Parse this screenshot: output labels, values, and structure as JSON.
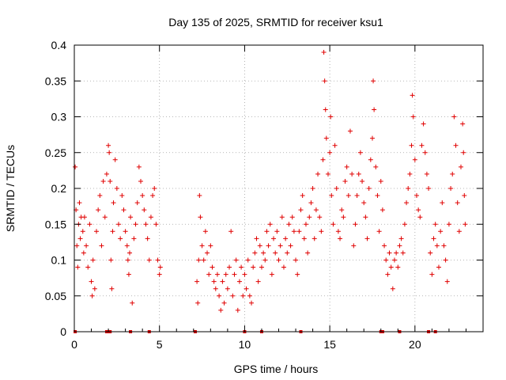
{
  "chart_data": {
    "type": "scatter",
    "title": "Day 135 of 2025, SRMTID for receiver ksu1",
    "xlabel": "GPS time / hours",
    "ylabel": "SRMTID / TECUs",
    "xlim": [
      0,
      24
    ],
    "ylim": [
      0,
      0.4
    ],
    "grid": true,
    "x_ticks": [
      0,
      5,
      10,
      15,
      20
    ],
    "x_tick_labels": [
      "0",
      "5",
      "10",
      "15",
      "20"
    ],
    "y_ticks": [
      0,
      0.05,
      0.1,
      0.15,
      0.2,
      0.25,
      0.3,
      0.35,
      0.4
    ],
    "y_tick_labels": [
      "0",
      "0.05",
      "0.1",
      "0.15",
      "0.2",
      "0.25",
      "0.3",
      "0.35",
      "0.4"
    ],
    "marker": "+",
    "color": "#e00000",
    "series": [
      {
        "name": "SRMTID",
        "points": [
          [
            0.05,
            0.23
          ],
          [
            0.1,
            0.17
          ],
          [
            0.15,
            0.12
          ],
          [
            0.2,
            0.09
          ],
          [
            0.25,
            0.15
          ],
          [
            0.3,
            0.18
          ],
          [
            0.35,
            0.13
          ],
          [
            0.4,
            0.16
          ],
          [
            0.5,
            0.14
          ],
          [
            0.55,
            0.11
          ],
          [
            0.6,
            0.16
          ],
          [
            0.7,
            0.12
          ],
          [
            0.8,
            0.09
          ],
          [
            0.9,
            0.15
          ],
          [
            1.0,
            0.07
          ],
          [
            1.05,
            0.05
          ],
          [
            1.1,
            0.1
          ],
          [
            1.2,
            0.06
          ],
          [
            1.3,
            0.14
          ],
          [
            1.4,
            0.17
          ],
          [
            1.5,
            0.19
          ],
          [
            1.6,
            0.12
          ],
          [
            1.7,
            0.21
          ],
          [
            1.8,
            0.16
          ],
          [
            1.9,
            0.22
          ],
          [
            2.0,
            0.26
          ],
          [
            2.05,
            0.25
          ],
          [
            2.1,
            0.21
          ],
          [
            2.15,
            0.1
          ],
          [
            2.2,
            0.06
          ],
          [
            2.25,
            0.14
          ],
          [
            2.3,
            0.18
          ],
          [
            2.4,
            0.24
          ],
          [
            2.5,
            0.2
          ],
          [
            2.6,
            0.15
          ],
          [
            2.7,
            0.13
          ],
          [
            2.8,
            0.19
          ],
          [
            2.9,
            0.17
          ],
          [
            3.0,
            0.14
          ],
          [
            3.1,
            0.12
          ],
          [
            3.15,
            0.1
          ],
          [
            3.2,
            0.08
          ],
          [
            3.25,
            0.11
          ],
          [
            3.3,
            0.16
          ],
          [
            3.4,
            0.04
          ],
          [
            3.5,
            0.13
          ],
          [
            3.6,
            0.15
          ],
          [
            3.7,
            0.18
          ],
          [
            3.8,
            0.23
          ],
          [
            3.9,
            0.21
          ],
          [
            4.0,
            0.19
          ],
          [
            4.1,
            0.17
          ],
          [
            4.2,
            0.15
          ],
          [
            4.3,
            0.13
          ],
          [
            4.4,
            0.1
          ],
          [
            4.5,
            0.16
          ],
          [
            4.6,
            0.19
          ],
          [
            4.7,
            0.2
          ],
          [
            4.8,
            0.15
          ],
          [
            4.9,
            0.1
          ],
          [
            5.0,
            0.08
          ],
          [
            5.05,
            0.09
          ],
          [
            7.2,
            0.07
          ],
          [
            7.25,
            0.04
          ],
          [
            7.3,
            0.1
          ],
          [
            7.35,
            0.19
          ],
          [
            7.4,
            0.16
          ],
          [
            7.5,
            0.12
          ],
          [
            7.6,
            0.1
          ],
          [
            7.7,
            0.14
          ],
          [
            7.8,
            0.11
          ],
          [
            7.9,
            0.08
          ],
          [
            8.0,
            0.12
          ],
          [
            8.1,
            0.09
          ],
          [
            8.2,
            0.07
          ],
          [
            8.3,
            0.06
          ],
          [
            8.4,
            0.08
          ],
          [
            8.5,
            0.05
          ],
          [
            8.6,
            0.03
          ],
          [
            8.7,
            0.07
          ],
          [
            8.8,
            0.04
          ],
          [
            8.9,
            0.08
          ],
          [
            9.0,
            0.06
          ],
          [
            9.1,
            0.09
          ],
          [
            9.2,
            0.14
          ],
          [
            9.3,
            0.05
          ],
          [
            9.4,
            0.08
          ],
          [
            9.5,
            0.1
          ],
          [
            9.6,
            0.03
          ],
          [
            9.7,
            0.07
          ],
          [
            9.8,
            0.09
          ],
          [
            9.9,
            0.05
          ],
          [
            10.0,
            0.08
          ],
          [
            10.1,
            0.06
          ],
          [
            10.2,
            0.1
          ],
          [
            10.3,
            0.05
          ],
          [
            10.4,
            0.04
          ],
          [
            10.5,
            0.09
          ],
          [
            10.6,
            0.11
          ],
          [
            10.7,
            0.13
          ],
          [
            10.8,
            0.07
          ],
          [
            10.9,
            0.12
          ],
          [
            11.0,
            0.09
          ],
          [
            11.1,
            0.11
          ],
          [
            11.2,
            0.1
          ],
          [
            11.3,
            0.14
          ],
          [
            11.4,
            0.12
          ],
          [
            11.5,
            0.15
          ],
          [
            11.6,
            0.08
          ],
          [
            11.7,
            0.13
          ],
          [
            11.8,
            0.11
          ],
          [
            11.9,
            0.14
          ],
          [
            12.0,
            0.1
          ],
          [
            12.1,
            0.12
          ],
          [
            12.2,
            0.16
          ],
          [
            12.3,
            0.09
          ],
          [
            12.4,
            0.13
          ],
          [
            12.5,
            0.11
          ],
          [
            12.6,
            0.15
          ],
          [
            12.7,
            0.12
          ],
          [
            12.8,
            0.16
          ],
          [
            12.9,
            0.14
          ],
          [
            13.0,
            0.1
          ],
          [
            13.1,
            0.08
          ],
          [
            13.2,
            0.14
          ],
          [
            13.3,
            0.17
          ],
          [
            13.4,
            0.19
          ],
          [
            13.5,
            0.13
          ],
          [
            13.6,
            0.15
          ],
          [
            13.7,
            0.11
          ],
          [
            13.8,
            0.16
          ],
          [
            13.9,
            0.18
          ],
          [
            14.0,
            0.2
          ],
          [
            14.1,
            0.13
          ],
          [
            14.2,
            0.17
          ],
          [
            14.3,
            0.22
          ],
          [
            14.4,
            0.16
          ],
          [
            14.5,
            0.14
          ],
          [
            14.6,
            0.24
          ],
          [
            14.65,
            0.39
          ],
          [
            14.7,
            0.35
          ],
          [
            14.75,
            0.31
          ],
          [
            14.8,
            0.27
          ],
          [
            14.9,
            0.22
          ],
          [
            15.0,
            0.25
          ],
          [
            15.05,
            0.3
          ],
          [
            15.1,
            0.19
          ],
          [
            15.2,
            0.15
          ],
          [
            15.3,
            0.26
          ],
          [
            15.4,
            0.2
          ],
          [
            15.5,
            0.14
          ],
          [
            15.6,
            0.13
          ],
          [
            15.7,
            0.17
          ],
          [
            15.8,
            0.16
          ],
          [
            15.9,
            0.21
          ],
          [
            16.0,
            0.23
          ],
          [
            16.1,
            0.19
          ],
          [
            16.2,
            0.28
          ],
          [
            16.3,
            0.22
          ],
          [
            16.4,
            0.12
          ],
          [
            16.5,
            0.15
          ],
          [
            16.6,
            0.19
          ],
          [
            16.7,
            0.22
          ],
          [
            16.8,
            0.25
          ],
          [
            16.9,
            0.21
          ],
          [
            17.0,
            0.18
          ],
          [
            17.1,
            0.16
          ],
          [
            17.2,
            0.13
          ],
          [
            17.3,
            0.2
          ],
          [
            17.4,
            0.24
          ],
          [
            17.5,
            0.27
          ],
          [
            17.55,
            0.35
          ],
          [
            17.6,
            0.31
          ],
          [
            17.7,
            0.23
          ],
          [
            17.8,
            0.19
          ],
          [
            17.9,
            0.14
          ],
          [
            18.0,
            0.21
          ],
          [
            18.1,
            0.17
          ],
          [
            18.2,
            0.12
          ],
          [
            18.3,
            0.1
          ],
          [
            18.4,
            0.08
          ],
          [
            18.5,
            0.11
          ],
          [
            18.6,
            0.09
          ],
          [
            18.7,
            0.06
          ],
          [
            18.8,
            0.1
          ],
          [
            18.9,
            0.11
          ],
          [
            19.0,
            0.09
          ],
          [
            19.1,
            0.12
          ],
          [
            19.2,
            0.13
          ],
          [
            19.3,
            0.11
          ],
          [
            19.4,
            0.15
          ],
          [
            19.5,
            0.18
          ],
          [
            19.6,
            0.2
          ],
          [
            19.7,
            0.22
          ],
          [
            19.8,
            0.26
          ],
          [
            19.85,
            0.33
          ],
          [
            19.9,
            0.3
          ],
          [
            20.0,
            0.24
          ],
          [
            20.1,
            0.19
          ],
          [
            20.2,
            0.17
          ],
          [
            20.3,
            0.16
          ],
          [
            20.4,
            0.26
          ],
          [
            20.5,
            0.29
          ],
          [
            20.6,
            0.25
          ],
          [
            20.7,
            0.22
          ],
          [
            20.8,
            0.2
          ],
          [
            20.9,
            0.11
          ],
          [
            21.0,
            0.08
          ],
          [
            21.1,
            0.13
          ],
          [
            21.2,
            0.15
          ],
          [
            21.3,
            0.12
          ],
          [
            21.4,
            0.09
          ],
          [
            21.5,
            0.14
          ],
          [
            21.6,
            0.18
          ],
          [
            21.7,
            0.12
          ],
          [
            21.8,
            0.1
          ],
          [
            21.9,
            0.07
          ],
          [
            22.0,
            0.15
          ],
          [
            22.1,
            0.2
          ],
          [
            22.2,
            0.22
          ],
          [
            22.3,
            0.3
          ],
          [
            22.4,
            0.26
          ],
          [
            22.5,
            0.18
          ],
          [
            22.6,
            0.14
          ],
          [
            22.7,
            0.23
          ],
          [
            22.8,
            0.29
          ],
          [
            22.85,
            0.25
          ],
          [
            22.9,
            0.19
          ],
          [
            22.95,
            0.15
          ]
        ]
      }
    ],
    "baseline_markers_x": [
      0.05,
      1.9,
      2.0,
      2.1,
      3.3,
      4.4,
      7.1,
      10.0,
      11.0,
      13.3,
      18.0,
      18.1,
      19.1,
      20.8,
      21.2
    ]
  }
}
